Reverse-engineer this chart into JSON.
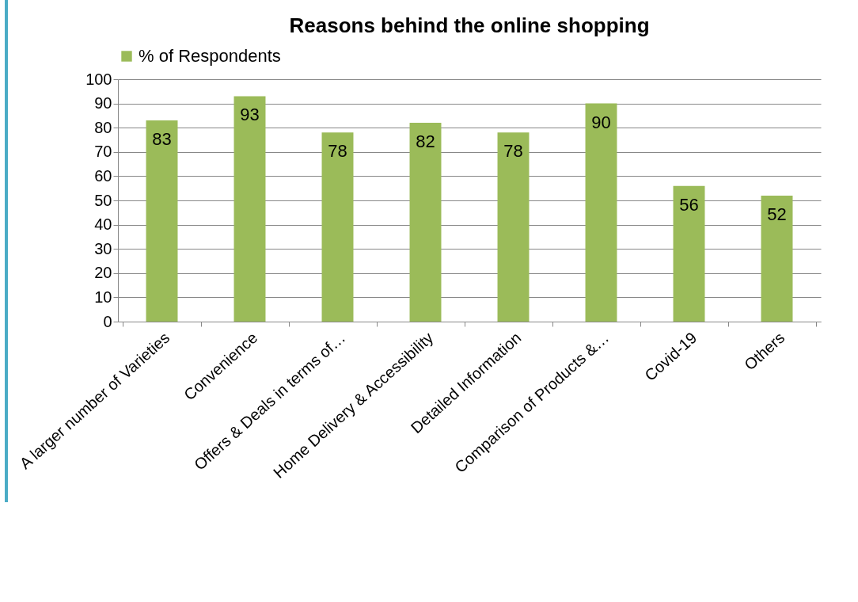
{
  "chart_data": {
    "type": "bar",
    "title": "Reasons behind the online shopping",
    "categories": [
      "A larger number of Varieties",
      "Convenience",
      "Offers & Deals in terms of…",
      "Home Delivery & Accessibility",
      "Detailed Information",
      "Comparison of Products &…",
      "Covid-19",
      "Others"
    ],
    "series": [
      {
        "name": "% of Respondents",
        "color": "#9bbb59",
        "values": [
          83,
          93,
          78,
          82,
          78,
          90,
          56,
          52
        ]
      }
    ],
    "ylim": [
      0,
      100
    ],
    "yticks": [
      0,
      10,
      20,
      30,
      40,
      50,
      60,
      70,
      80,
      90,
      100
    ],
    "grid": "y",
    "legend": "top",
    "data_labels": true
  }
}
